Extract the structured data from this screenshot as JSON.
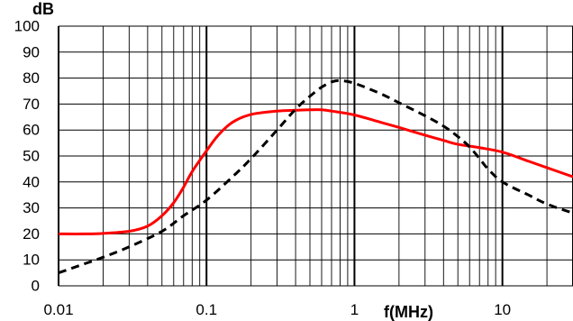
{
  "chart_data": {
    "type": "line",
    "x_scale": "log",
    "xlim": [
      0.01,
      30
    ],
    "ylim": [
      0,
      100
    ],
    "xlabel": "f(MHz)",
    "ylabel": "dB",
    "grid": true,
    "legend": "none",
    "x_tick_labels": [
      "0.01",
      "0.1",
      "1",
      "10"
    ],
    "x_major_ticks": [
      0.01,
      0.1,
      1,
      10
    ],
    "y_tick_labels": [
      "0",
      "10",
      "20",
      "30",
      "40",
      "50",
      "60",
      "70",
      "80",
      "90",
      "100"
    ],
    "y_ticks": [
      0,
      10,
      20,
      30,
      40,
      50,
      60,
      70,
      80,
      90,
      100
    ],
    "series": [
      {
        "style": "solid",
        "color": "#ff0000",
        "x": [
          0.01,
          0.015,
          0.02,
          0.03,
          0.04,
          0.05,
          0.06,
          0.07,
          0.08,
          0.1,
          0.12,
          0.15,
          0.2,
          0.3,
          0.4,
          0.5,
          0.6,
          0.7,
          1,
          1.5,
          2,
          3,
          4,
          5,
          7,
          10,
          15,
          20,
          30
        ],
        "y": [
          20,
          20,
          20.2,
          21,
          23,
          27,
          32,
          38,
          44,
          52,
          58,
          63,
          66,
          67.3,
          67.6,
          67.8,
          67.8,
          67.3,
          65.8,
          63,
          61,
          58,
          56,
          54.5,
          53.2,
          51.5,
          48,
          45.5,
          42
        ]
      },
      {
        "style": "dashed",
        "color": "#000000",
        "x": [
          0.01,
          0.015,
          0.02,
          0.03,
          0.05,
          0.07,
          0.1,
          0.15,
          0.2,
          0.3,
          0.4,
          0.5,
          0.6,
          0.7,
          0.8,
          1,
          1.5,
          2,
          3,
          4,
          5,
          6,
          7,
          8,
          10,
          15,
          20,
          30
        ],
        "y": [
          5,
          8.5,
          11,
          15,
          21,
          27,
          33,
          42,
          49,
          60,
          68,
          73,
          76.5,
          78.5,
          79,
          78,
          74,
          70.5,
          65.5,
          61.5,
          57.5,
          53.5,
          49,
          45,
          40,
          35,
          31.5,
          28
        ]
      }
    ]
  }
}
